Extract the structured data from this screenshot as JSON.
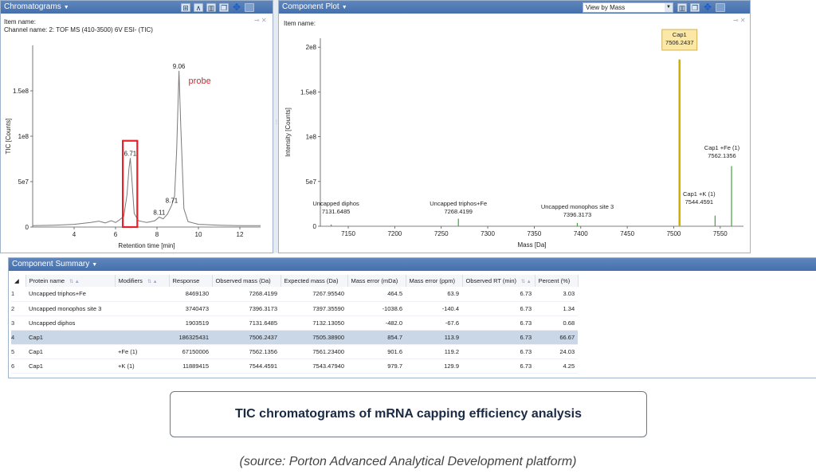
{
  "chromatograms": {
    "title": "Chromatograms",
    "item_name": "Item name:",
    "channel_name": "Channel name: 2: TOF MS (410-3500) 6V ESI- (TIC)",
    "chart_data": {
      "type": "line",
      "xlabel": "Retention time [min]",
      "ylabel": "TIC [Counts]",
      "xlim": [
        2,
        13
      ],
      "ylim": [
        0,
        200000000
      ],
      "x_ticks": [
        4,
        6,
        8,
        10,
        12
      ],
      "y_ticks": [
        0,
        50000000,
        100000000,
        150000000
      ],
      "y_tick_labels": [
        "0",
        "5e7",
        "1e8",
        "1.5e8"
      ],
      "x_tick_labels": [
        "4",
        "6",
        "8",
        "10",
        "12"
      ],
      "series": [
        {
          "x": [
            2.0,
            3.0,
            4.0,
            4.8,
            5.2,
            5.5,
            5.8,
            6.0,
            6.2,
            6.4,
            6.55,
            6.65,
            6.71,
            6.78,
            6.9,
            7.1,
            7.3,
            7.5,
            7.7,
            7.9,
            8.11,
            8.3,
            8.5,
            8.71,
            8.85,
            8.95,
            9.06,
            9.15,
            9.3,
            9.5,
            10.0,
            11.0,
            12.0,
            13.0
          ],
          "y": [
            1500000,
            2000000,
            3000000,
            5000000,
            6500000,
            4500000,
            7000000,
            5000000,
            8000000,
            12000000,
            35000000,
            65000000,
            76000000,
            55000000,
            15000000,
            7000000,
            6000000,
            5000000,
            6000000,
            7000000,
            11000000,
            9000000,
            14000000,
            24000000,
            34000000,
            85000000,
            172000000,
            110000000,
            20000000,
            6000000,
            3000000,
            2000000,
            1500000,
            1500000
          ]
        }
      ],
      "annotations": [
        {
          "x": 9.06,
          "y": 172000000,
          "text": "9.06"
        },
        {
          "x": 6.71,
          "y": 76000000,
          "text": "6.71"
        },
        {
          "x": 8.71,
          "y": 24000000,
          "text": "8.71"
        },
        {
          "x": 8.11,
          "y": 11000000,
          "text": "8.11"
        }
      ],
      "probe_label": "probe",
      "highlight_box": {
        "x_start": 6.35,
        "x_end": 7.05,
        "y_top": 95000000,
        "color": "#e8202a"
      }
    }
  },
  "component_plot": {
    "title": "Component Plot",
    "item_name": "Item name:",
    "view_select": "View by Mass",
    "chart_data": {
      "type": "bar",
      "xlabel": "Mass [Da]",
      "ylabel": "Intensity [Counts]",
      "xlim": [
        7120,
        7575
      ],
      "ylim": [
        0,
        210000000
      ],
      "x_ticks": [
        7150,
        7200,
        7250,
        7300,
        7350,
        7400,
        7450,
        7500,
        7550
      ],
      "y_ticks": [
        0,
        50000000,
        100000000,
        150000000,
        200000000
      ],
      "y_tick_labels": [
        "0",
        "5e7",
        "1e8",
        "1.5e8",
        "2e8"
      ],
      "x_tick_labels": [
        "7150",
        "7200",
        "7250",
        "7300",
        "7350",
        "7400",
        "7450",
        "7500",
        "7550"
      ],
      "peaks": [
        {
          "name": "Uncapped diphos",
          "mass": 7131.6485,
          "mass_label": "7131.6485",
          "intensity": 1903519,
          "color": "#3aa63a"
        },
        {
          "name": "Uncapped triphos+Fe",
          "mass": 7268.4199,
          "mass_label": "7268.4199",
          "intensity": 8469130,
          "color": "#3aa63a"
        },
        {
          "name": "Uncapped monophos site 3",
          "mass": 7396.3173,
          "mass_label": "7396.3173",
          "intensity": 3740473,
          "color": "#3aa63a"
        },
        {
          "name": "Cap1",
          "mass": 7506.2437,
          "mass_label": "7506.2437",
          "intensity": 186325431,
          "color": "#c9b200"
        },
        {
          "name": "Cap1 +K (1)",
          "mass": 7544.4591,
          "mass_label": "7544.4591",
          "intensity": 11889415,
          "color": "#3aa63a"
        },
        {
          "name": "Cap1 +Fe (1)",
          "mass": 7562.1356,
          "mass_label": "7562.1356",
          "intensity": 67150006,
          "color": "#3aa63a"
        }
      ]
    }
  },
  "component_summary": {
    "title": "Component Summary",
    "columns": [
      "Protein name",
      "Modifiers",
      "Response",
      "Observed mass (Da)",
      "Expected mass (Da)",
      "Mass error (mDa)",
      "Mass error (ppm)",
      "Observed RT (min)",
      "Percent (%)"
    ],
    "rows": [
      {
        "n": "1",
        "protein": "Uncapped triphos+Fe",
        "modifiers": "",
        "response": "8469130",
        "observed": "7268.4199",
        "expected": "7267.95540",
        "err_mda": "464.5",
        "err_ppm": "63.9",
        "rt": "6.73",
        "percent": "3.03"
      },
      {
        "n": "2",
        "protein": "Uncapped monophos site 3",
        "modifiers": "",
        "response": "3740473",
        "observed": "7396.3173",
        "expected": "7397.35590",
        "err_mda": "-1038.6",
        "err_ppm": "-140.4",
        "rt": "6.73",
        "percent": "1.34"
      },
      {
        "n": "3",
        "protein": "Uncapped diphos",
        "modifiers": "",
        "response": "1903519",
        "observed": "7131.6485",
        "expected": "7132.13050",
        "err_mda": "-482.0",
        "err_ppm": "-67.6",
        "rt": "6.73",
        "percent": "0.68"
      },
      {
        "n": "4",
        "protein": "Cap1",
        "modifiers": "",
        "response": "186325431",
        "observed": "7506.2437",
        "expected": "7505.38900",
        "err_mda": "854.7",
        "err_ppm": "113.9",
        "rt": "6.73",
        "percent": "66.67"
      },
      {
        "n": "5",
        "protein": "Cap1",
        "modifiers": "+Fe (1)",
        "response": "67150006",
        "observed": "7562.1356",
        "expected": "7561.23400",
        "err_mda": "901.6",
        "err_ppm": "119.2",
        "rt": "6.73",
        "percent": "24.03"
      },
      {
        "n": "6",
        "protein": "Cap1",
        "modifiers": "+K (1)",
        "response": "11889415",
        "observed": "7544.4591",
        "expected": "7543.47940",
        "err_mda": "979.7",
        "err_ppm": "129.9",
        "rt": "6.73",
        "percent": "4.25"
      }
    ],
    "selected_row": 3
  },
  "caption": "TIC chromatograms of mRNA capping efficiency analysis",
  "source": "(source: Porton Advanced Analytical Development platform)"
}
